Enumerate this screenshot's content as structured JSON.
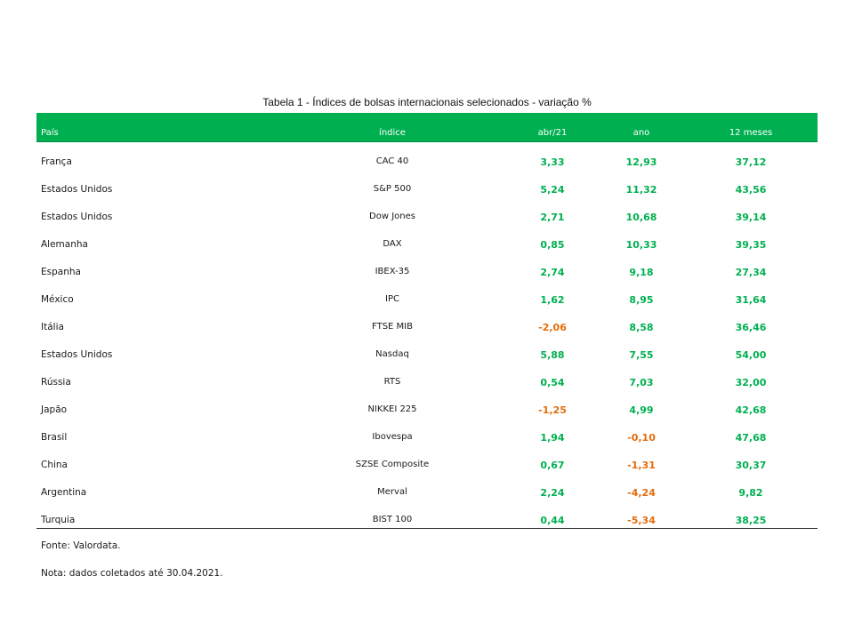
{
  "title": "Tabela 1 - Índices de bolsas internacionais selecionados - variação %",
  "header": {
    "pais": "País",
    "indice": "índice",
    "abr": "abr/21",
    "ano": "ano",
    "meses": "12 meses"
  },
  "colors": {
    "header_bg": "#00b050",
    "positive": "#00b050",
    "negative": "#e46c0a"
  },
  "rows": [
    {
      "pais": "França",
      "indice": "CAC 40",
      "abr": "3,33",
      "ano": "12,93",
      "meses": "37,12"
    },
    {
      "pais": "Estados Unidos",
      "indice": "S&P 500",
      "abr": "5,24",
      "ano": "11,32",
      "meses": "43,56"
    },
    {
      "pais": "Estados Unidos",
      "indice": "Dow Jones",
      "abr": "2,71",
      "ano": "10,68",
      "meses": "39,14"
    },
    {
      "pais": "Alemanha",
      "indice": "DAX",
      "abr": "0,85",
      "ano": "10,33",
      "meses": "39,35"
    },
    {
      "pais": "Espanha",
      "indice": "IBEX-35",
      "abr": "2,74",
      "ano": "9,18",
      "meses": "27,34"
    },
    {
      "pais": "México",
      "indice": "IPC",
      "abr": "1,62",
      "ano": "8,95",
      "meses": "31,64"
    },
    {
      "pais": "Itália",
      "indice": "FTSE MIB",
      "abr": "-2,06",
      "ano": "8,58",
      "meses": "36,46"
    },
    {
      "pais": "Estados Unidos",
      "indice": "Nasdaq",
      "abr": "5,88",
      "ano": "7,55",
      "meses": "54,00"
    },
    {
      "pais": "Rússia",
      "indice": "RTS",
      "abr": "0,54",
      "ano": "7,03",
      "meses": "32,00"
    },
    {
      "pais": "Japão",
      "indice": "NIKKEI 225",
      "abr": "-1,25",
      "ano": "4,99",
      "meses": "42,68"
    },
    {
      "pais": "Brasil",
      "indice": "Ibovespa",
      "abr": "1,94",
      "ano": "-0,10",
      "meses": "47,68"
    },
    {
      "pais": "China",
      "indice": "SZSE Composite",
      "abr": "0,67",
      "ano": "-1,31",
      "meses": "30,37"
    },
    {
      "pais": "Argentina",
      "indice": "Merval",
      "abr": "2,24",
      "ano": "-4,24",
      "meses": "9,82"
    },
    {
      "pais": "Turquia",
      "indice": "BIST 100",
      "abr": "0,44",
      "ano": "-5,34",
      "meses": "38,25"
    }
  ],
  "footer": {
    "fonte": "Fonte: Valordata.",
    "nota": "Nota: dados coletados até 30.04.2021."
  }
}
